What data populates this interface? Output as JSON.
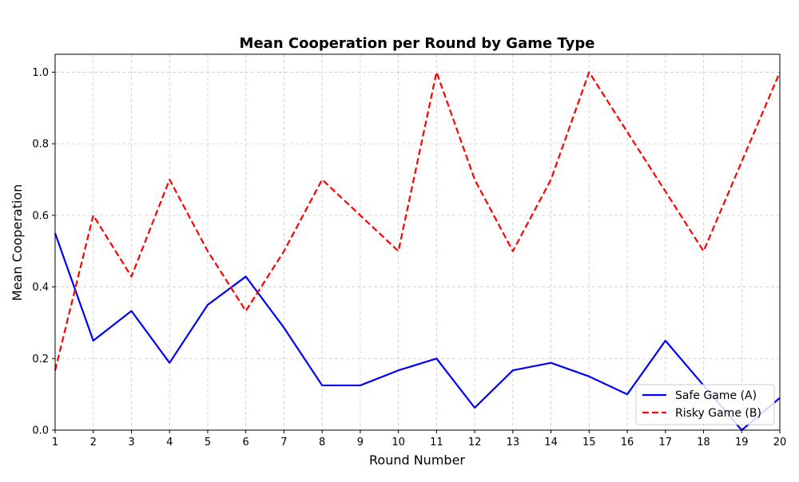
{
  "chart_data": {
    "type": "line",
    "title": "Mean Cooperation per Round by Game Type",
    "xlabel": "Round Number",
    "ylabel": "Mean Cooperation",
    "x": [
      1,
      2,
      3,
      4,
      5,
      6,
      7,
      8,
      9,
      10,
      11,
      12,
      13,
      14,
      15,
      16,
      17,
      18,
      19,
      20
    ],
    "xlim": [
      1,
      20
    ],
    "ylim": [
      0,
      1.05
    ],
    "x_ticks": [
      "1",
      "2",
      "3",
      "4",
      "5",
      "6",
      "7",
      "8",
      "9",
      "10",
      "11",
      "12",
      "13",
      "14",
      "15",
      "16",
      "17",
      "18",
      "19",
      "20"
    ],
    "y_ticks": [
      "0.0",
      "0.2",
      "0.4",
      "0.6",
      "0.8",
      "1.0"
    ],
    "grid": true,
    "legend_position": "bottom-right",
    "series": [
      {
        "name": "Safe Game (A)",
        "color": "#0000ff",
        "style": "solid",
        "values": [
          0.55,
          0.25,
          0.333,
          0.188,
          0.35,
          0.429,
          0.286,
          0.125,
          0.125,
          0.167,
          0.2,
          0.0625,
          0.167,
          0.188,
          0.15,
          0.1,
          0.25,
          0.125,
          0.0,
          0.09
        ]
      },
      {
        "name": "Risky Game (B)",
        "color": "#ff0000",
        "style": "dashed",
        "values": [
          0.167,
          0.6,
          0.429,
          0.7,
          0.5,
          0.333,
          0.5,
          0.7,
          0.6,
          0.5,
          1.0,
          0.7,
          0.5,
          0.7,
          1.0,
          0.833,
          0.667,
          0.5,
          0.75,
          1.0
        ]
      }
    ]
  }
}
